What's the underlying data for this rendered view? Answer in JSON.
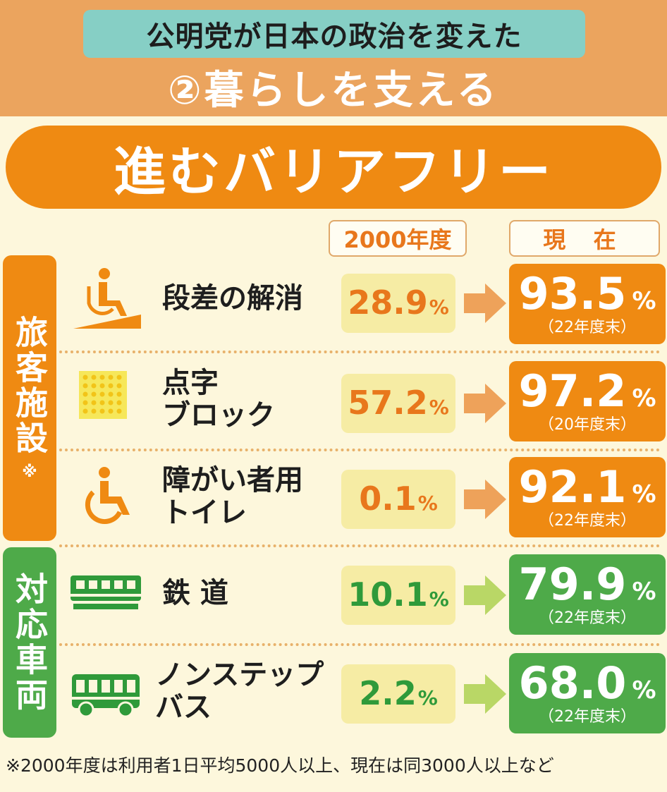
{
  "header": {
    "series": "公明党が日本の政治を変えた",
    "subtitle": "②暮らしを支える"
  },
  "title": "進むバリアフリー",
  "columns": {
    "year2000": "2000年度",
    "current": "現 在"
  },
  "groups": [
    {
      "label": "旅客施設",
      "mark": "※",
      "color": "#ef8a12"
    },
    {
      "label": "対応車両",
      "mark": "",
      "color": "#4eaa49"
    }
  ],
  "chart_data": {
    "type": "table",
    "categories": [
      "段差の解消",
      "点字ブロック",
      "障がい者用トイレ",
      "鉄道",
      "ノンステップバス"
    ],
    "series": [
      {
        "name": "2000年度",
        "values": [
          28.9,
          57.2,
          0.1,
          10.1,
          2.2
        ]
      },
      {
        "name": "現在",
        "values": [
          93.5,
          97.2,
          92.1,
          79.9,
          68.0
        ]
      }
    ]
  },
  "rows": [
    {
      "label_lines": [
        "段差の解消"
      ],
      "old": "28.9",
      "now": "93.5",
      "note": "（22年度末）",
      "icon": "wheelchair-ramp-icon"
    },
    {
      "label_lines": [
        "点字",
        "ブロック"
      ],
      "old": "57.2",
      "now": "97.2",
      "note": "（20年度末）",
      "icon": "tactile-block-icon"
    },
    {
      "label_lines": [
        "障がい者用",
        "トイレ"
      ],
      "old": "0.1",
      "now": "92.1",
      "note": "（22年度末）",
      "icon": "wheelchair-icon"
    },
    {
      "label_lines": [
        "鉄 道"
      ],
      "old": "10.1",
      "now": "79.9",
      "note": "（22年度末）",
      "icon": "train-icon"
    },
    {
      "label_lines": [
        "ノンステップ",
        "バス"
      ],
      "old": "2.2",
      "now": "68.0",
      "note": "（22年度末）",
      "icon": "bus-icon"
    }
  ],
  "percent_sign": "%",
  "footnote": "※2000年度は利用者1日平均5000人以上、現在は同3000人以上など"
}
